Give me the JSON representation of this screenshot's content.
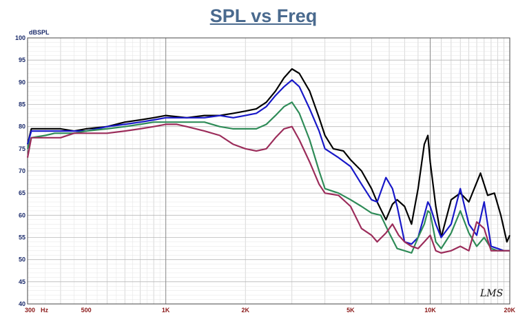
{
  "chart_data": {
    "type": "line",
    "title": "SPL vs Freq",
    "ylabel": "dBSPL",
    "xlabel": "",
    "x_scale": "log",
    "xlim": [
      300,
      20000
    ],
    "ylim": [
      40,
      100
    ],
    "yticks": [
      40,
      45,
      50,
      55,
      60,
      65,
      70,
      75,
      80,
      85,
      90,
      95,
      100
    ],
    "xticks": [
      {
        "value": 300,
        "label": "300"
      },
      {
        "value": 500,
        "label": "500"
      },
      {
        "value": 1000,
        "label": "1K"
      },
      {
        "value": 2000,
        "label": "2K"
      },
      {
        "value": 5000,
        "label": "5K"
      },
      {
        "value": 10000,
        "label": "10K"
      },
      {
        "value": 20000,
        "label": "20K"
      }
    ],
    "x_unit_label": "Hz",
    "grid": true,
    "watermark": "LMS",
    "series": [
      {
        "color": "#000000",
        "points": [
          [
            300,
            76
          ],
          [
            310,
            79.5
          ],
          [
            350,
            79.5
          ],
          [
            400,
            79.5
          ],
          [
            450,
            79
          ],
          [
            500,
            79.5
          ],
          [
            600,
            80
          ],
          [
            700,
            81
          ],
          [
            800,
            81.5
          ],
          [
            900,
            82
          ],
          [
            1000,
            82.5
          ],
          [
            1200,
            82
          ],
          [
            1400,
            82.5
          ],
          [
            1600,
            82.5
          ],
          [
            1800,
            83
          ],
          [
            2000,
            83.5
          ],
          [
            2200,
            84
          ],
          [
            2400,
            85.5
          ],
          [
            2600,
            88
          ],
          [
            2800,
            91
          ],
          [
            3000,
            93
          ],
          [
            3200,
            92
          ],
          [
            3500,
            88
          ],
          [
            3800,
            82
          ],
          [
            4000,
            78
          ],
          [
            4300,
            75
          ],
          [
            4700,
            74.5
          ],
          [
            5000,
            72.5
          ],
          [
            5500,
            70
          ],
          [
            6000,
            66
          ],
          [
            6300,
            63
          ],
          [
            6800,
            59
          ],
          [
            7200,
            62.5
          ],
          [
            7500,
            63.5
          ],
          [
            8000,
            62
          ],
          [
            8500,
            58
          ],
          [
            9000,
            66
          ],
          [
            9500,
            76
          ],
          [
            9800,
            78
          ],
          [
            10000,
            72
          ],
          [
            10500,
            62
          ],
          [
            11000,
            55
          ],
          [
            12000,
            63.5
          ],
          [
            13000,
            65
          ],
          [
            14000,
            63
          ],
          [
            15500,
            69.5
          ],
          [
            16500,
            64.5
          ],
          [
            17500,
            65
          ],
          [
            18500,
            60
          ],
          [
            19500,
            54
          ],
          [
            20000,
            55.5
          ]
        ]
      },
      {
        "color": "#1818c8",
        "points": [
          [
            300,
            76
          ],
          [
            310,
            79
          ],
          [
            350,
            79
          ],
          [
            400,
            79
          ],
          [
            450,
            79
          ],
          [
            500,
            79
          ],
          [
            600,
            80
          ],
          [
            700,
            80.5
          ],
          [
            800,
            81
          ],
          [
            900,
            81.5
          ],
          [
            1000,
            82
          ],
          [
            1200,
            82
          ],
          [
            1400,
            82
          ],
          [
            1600,
            82.5
          ],
          [
            1800,
            82
          ],
          [
            2000,
            82.5
          ],
          [
            2200,
            83
          ],
          [
            2400,
            84.5
          ],
          [
            2600,
            87
          ],
          [
            2800,
            89
          ],
          [
            3000,
            90.5
          ],
          [
            3200,
            89
          ],
          [
            3500,
            84
          ],
          [
            3800,
            79
          ],
          [
            4000,
            75
          ],
          [
            4500,
            73
          ],
          [
            5000,
            71
          ],
          [
            5500,
            67
          ],
          [
            6000,
            63.5
          ],
          [
            6300,
            63
          ],
          [
            6800,
            68.5
          ],
          [
            7200,
            66
          ],
          [
            7500,
            62
          ],
          [
            8000,
            54
          ],
          [
            8500,
            53.5
          ],
          [
            9000,
            55
          ],
          [
            9500,
            60
          ],
          [
            9800,
            63
          ],
          [
            10000,
            62
          ],
          [
            10500,
            58
          ],
          [
            11000,
            55
          ],
          [
            12000,
            58
          ],
          [
            13000,
            66
          ],
          [
            14000,
            58
          ],
          [
            15000,
            55.5
          ],
          [
            16000,
            63
          ],
          [
            17000,
            53
          ],
          [
            18000,
            52.5
          ],
          [
            19000,
            52
          ],
          [
            20000,
            52
          ]
        ]
      },
      {
        "color": "#2e8b57",
        "points": [
          [
            300,
            75
          ],
          [
            310,
            77.5
          ],
          [
            350,
            78
          ],
          [
            380,
            78.5
          ],
          [
            450,
            78.5
          ],
          [
            500,
            79
          ],
          [
            600,
            79.5
          ],
          [
            700,
            80
          ],
          [
            800,
            80.5
          ],
          [
            900,
            81
          ],
          [
            1000,
            81
          ],
          [
            1200,
            81
          ],
          [
            1400,
            81
          ],
          [
            1600,
            80
          ],
          [
            1800,
            79.5
          ],
          [
            2000,
            79.5
          ],
          [
            2200,
            79.5
          ],
          [
            2400,
            80.5
          ],
          [
            2600,
            82.5
          ],
          [
            2800,
            84.5
          ],
          [
            3000,
            85.5
          ],
          [
            3200,
            83
          ],
          [
            3500,
            77
          ],
          [
            3800,
            70
          ],
          [
            4000,
            66
          ],
          [
            4500,
            65
          ],
          [
            5000,
            63.5
          ],
          [
            5500,
            62
          ],
          [
            6000,
            60.5
          ],
          [
            6500,
            60
          ],
          [
            7000,
            56
          ],
          [
            7500,
            52.5
          ],
          [
            8000,
            52
          ],
          [
            8500,
            51.5
          ],
          [
            9000,
            55
          ],
          [
            9500,
            58
          ],
          [
            9800,
            61
          ],
          [
            10000,
            60.5
          ],
          [
            10500,
            54
          ],
          [
            11000,
            52.5
          ],
          [
            12000,
            56
          ],
          [
            13000,
            61
          ],
          [
            14000,
            56
          ],
          [
            15000,
            53
          ],
          [
            16000,
            55
          ],
          [
            17000,
            52.5
          ],
          [
            18000,
            52
          ],
          [
            19000,
            52
          ],
          [
            20000,
            52
          ]
        ]
      },
      {
        "color": "#9b2c5a",
        "points": [
          [
            300,
            73
          ],
          [
            310,
            77.5
          ],
          [
            350,
            77.5
          ],
          [
            400,
            77.5
          ],
          [
            450,
            78.5
          ],
          [
            500,
            78.5
          ],
          [
            600,
            78.5
          ],
          [
            700,
            79
          ],
          [
            800,
            79.5
          ],
          [
            900,
            80
          ],
          [
            1000,
            80.5
          ],
          [
            1100,
            80.5
          ],
          [
            1200,
            80
          ],
          [
            1400,
            79
          ],
          [
            1600,
            78
          ],
          [
            1800,
            76
          ],
          [
            2000,
            75
          ],
          [
            2200,
            74.5
          ],
          [
            2400,
            75
          ],
          [
            2600,
            77.5
          ],
          [
            2800,
            79.5
          ],
          [
            3000,
            80
          ],
          [
            3200,
            77
          ],
          [
            3500,
            72
          ],
          [
            3800,
            67
          ],
          [
            4000,
            65
          ],
          [
            4500,
            64.5
          ],
          [
            5000,
            62
          ],
          [
            5500,
            57
          ],
          [
            6000,
            55.5
          ],
          [
            6300,
            54
          ],
          [
            6800,
            56
          ],
          [
            7200,
            58
          ],
          [
            7600,
            55.5
          ],
          [
            8000,
            54
          ],
          [
            8500,
            53
          ],
          [
            9000,
            52.5
          ],
          [
            9500,
            54
          ],
          [
            10000,
            55.5
          ],
          [
            10500,
            52
          ],
          [
            11000,
            51.5
          ],
          [
            12000,
            52
          ],
          [
            13000,
            53
          ],
          [
            14000,
            52
          ],
          [
            15000,
            58.5
          ],
          [
            16000,
            57
          ],
          [
            17000,
            52
          ],
          [
            18000,
            52
          ],
          [
            19000,
            52
          ],
          [
            20000,
            52
          ]
        ]
      }
    ]
  }
}
